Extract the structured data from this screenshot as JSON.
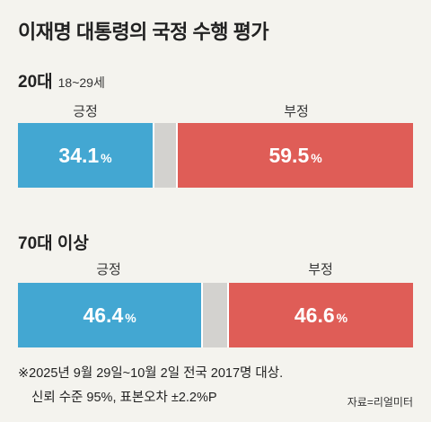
{
  "title": "이재명 대통령의 국정 수행 평가",
  "colors": {
    "positive": "#43a7d2",
    "neutral": "#d3d2cf",
    "negative": "#df5d57"
  },
  "chart_data": [
    {
      "type": "bar",
      "group": "20대",
      "group_sub": "18~29세",
      "positive_label": "긍정",
      "negative_label": "부정",
      "positive": 34.1,
      "negative": 59.5,
      "positive_text": "34.1",
      "negative_text": "59.5",
      "unit": "%"
    },
    {
      "type": "bar",
      "group": "70대 이상",
      "group_sub": "",
      "positive_label": "긍정",
      "negative_label": "부정",
      "positive": 46.4,
      "negative": 46.6,
      "positive_text": "46.4",
      "negative_text": "46.6",
      "unit": "%"
    }
  ],
  "notes": {
    "line1": "※2025년 9월 29일~10월 2일 전국 2017명 대상.",
    "line2": "신뢰 수준 95%, 표본오차 ±2.2%P"
  },
  "source": "자료=리얼미터"
}
